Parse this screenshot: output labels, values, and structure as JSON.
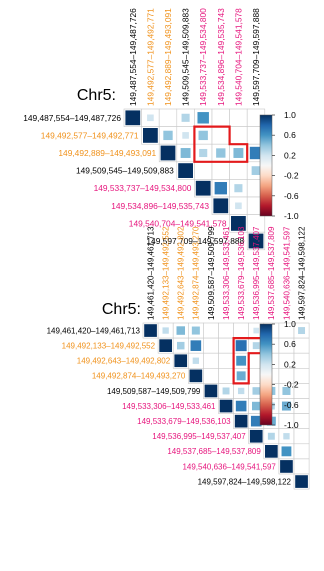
{
  "colorbar": {
    "stops": [
      "#67001f",
      "#b2182b",
      "#d6604d",
      "#f4a582",
      "#fddbc7",
      "#f7f7f7",
      "#d1e5f0",
      "#92c5de",
      "#4393c3",
      "#2166ac",
      "#053061"
    ]
  },
  "colors": {
    "black_label": "#000000",
    "orange_label": "#f0921c",
    "magenta_label": "#e6157d",
    "highlight": "#e31a1c",
    "grid": "#c8c8c8"
  },
  "chart_data": [
    {
      "type": "heatmap",
      "title": "Chr5:",
      "colorbar_ticks": [
        "1.0",
        "0.6",
        "0.2",
        "-0.2",
        "-0.6",
        "-1.0"
      ],
      "colorbar_values": [
        1.0,
        0.6,
        0.2,
        -0.2,
        -0.6,
        -1.0
      ],
      "range": [
        -1.0,
        1.0
      ],
      "labels": [
        {
          "text": "149,487,554–149,487,726",
          "group": "black"
        },
        {
          "text": "149,492,577–149,492,771",
          "group": "orange"
        },
        {
          "text": "149,492,889–149,493,091",
          "group": "orange"
        },
        {
          "text": "149,509,545–149,509,883",
          "group": "black"
        },
        {
          "text": "149,533,737–149,534,800",
          "group": "magenta"
        },
        {
          "text": "149,534,896–149,535,743",
          "group": "magenta"
        },
        {
          "text": "149,540,704–149,541,578",
          "group": "magenta"
        },
        {
          "text": "149,597,709–149,597,888",
          "group": "black"
        }
      ],
      "cells": [
        [
          0,
          0,
          1.0
        ],
        [
          0,
          1,
          0.2
        ],
        [
          0,
          3,
          0.3
        ],
        [
          0,
          4,
          0.6
        ],
        [
          1,
          1,
          1.0
        ],
        [
          1,
          2,
          0.4
        ],
        [
          1,
          3,
          0.2
        ],
        [
          1,
          4,
          0.4
        ],
        [
          2,
          2,
          1.0
        ],
        [
          2,
          3,
          0.45
        ],
        [
          2,
          4,
          0.3
        ],
        [
          2,
          5,
          0.4
        ],
        [
          2,
          6,
          0.45
        ],
        [
          2,
          7,
          0.7
        ],
        [
          3,
          3,
          1.0
        ],
        [
          3,
          7,
          0.35
        ],
        [
          4,
          4,
          1.0
        ],
        [
          4,
          5,
          0.7
        ],
        [
          4,
          6,
          0.3
        ],
        [
          5,
          5,
          1.0
        ],
        [
          5,
          6,
          0.2
        ],
        [
          6,
          6,
          1.0
        ],
        [
          7,
          7,
          1.0
        ]
      ],
      "highlight_cells": [
        [
          1,
          4
        ],
        [
          1,
          5
        ],
        [
          2,
          4
        ],
        [
          2,
          5
        ],
        [
          2,
          6
        ]
      ]
    },
    {
      "type": "heatmap",
      "title": "Chr5:",
      "colorbar_ticks": [
        "1.0",
        "0.6",
        "0.2",
        "-0.2",
        "-0.6",
        "-1.0"
      ],
      "colorbar_values": [
        1.0,
        0.6,
        0.2,
        -0.2,
        -0.6,
        -1.0
      ],
      "range": [
        -1.0,
        1.0
      ],
      "labels": [
        {
          "text": "149,461,420–149,461,713",
          "group": "black"
        },
        {
          "text": "149,492,133–149,492,552",
          "group": "orange"
        },
        {
          "text": "149,492,643–149,492,802",
          "group": "orange"
        },
        {
          "text": "149,492,874–149,493,270",
          "group": "orange"
        },
        {
          "text": "149,509,587–149,509,799",
          "group": "black"
        },
        {
          "text": "149,533,306–149,533,461",
          "group": "magenta"
        },
        {
          "text": "149,533,679–149,536,103",
          "group": "magenta"
        },
        {
          "text": "149,536,995–149,537,407",
          "group": "magenta"
        },
        {
          "text": "149,537,685–149,537,809",
          "group": "magenta"
        },
        {
          "text": "149,540,636–149,541,597",
          "group": "magenta"
        },
        {
          "text": "149,597,824–149,598,122",
          "group": "black"
        }
      ],
      "cells": [
        [
          0,
          0,
          1.0
        ],
        [
          0,
          1,
          0.25
        ],
        [
          0,
          2,
          0.45
        ],
        [
          0,
          3,
          0.4
        ],
        [
          0,
          7,
          0.2
        ],
        [
          0,
          10,
          0.3
        ],
        [
          1,
          1,
          1.0
        ],
        [
          1,
          2,
          0.35
        ],
        [
          1,
          3,
          0.7
        ],
        [
          1,
          6,
          0.75
        ],
        [
          1,
          7,
          0.3
        ],
        [
          2,
          2,
          1.0
        ],
        [
          2,
          3,
          0.25
        ],
        [
          2,
          6,
          0.6
        ],
        [
          3,
          3,
          1.0
        ],
        [
          3,
          6,
          0.5
        ],
        [
          4,
          4,
          1.0
        ],
        [
          4,
          5,
          0.3
        ],
        [
          4,
          6,
          0.25
        ],
        [
          4,
          7,
          0.35
        ],
        [
          4,
          8,
          0.4
        ],
        [
          4,
          9,
          0.4
        ],
        [
          5,
          5,
          1.0
        ],
        [
          5,
          6,
          0.7
        ],
        [
          5,
          7,
          0.45
        ],
        [
          5,
          8,
          0.3
        ],
        [
          5,
          9,
          0.5
        ],
        [
          6,
          6,
          1.0
        ],
        [
          6,
          7,
          0.7
        ],
        [
          6,
          8,
          0.5
        ],
        [
          7,
          7,
          1.0
        ],
        [
          7,
          8,
          0.3
        ],
        [
          7,
          9,
          0.25
        ],
        [
          8,
          8,
          1.0
        ],
        [
          8,
          9,
          0.6
        ],
        [
          9,
          9,
          1.0
        ],
        [
          10,
          10,
          1.0
        ]
      ],
      "highlight_cells": [
        [
          1,
          6
        ],
        [
          1,
          7
        ],
        [
          2,
          6
        ],
        [
          3,
          6
        ]
      ]
    }
  ]
}
